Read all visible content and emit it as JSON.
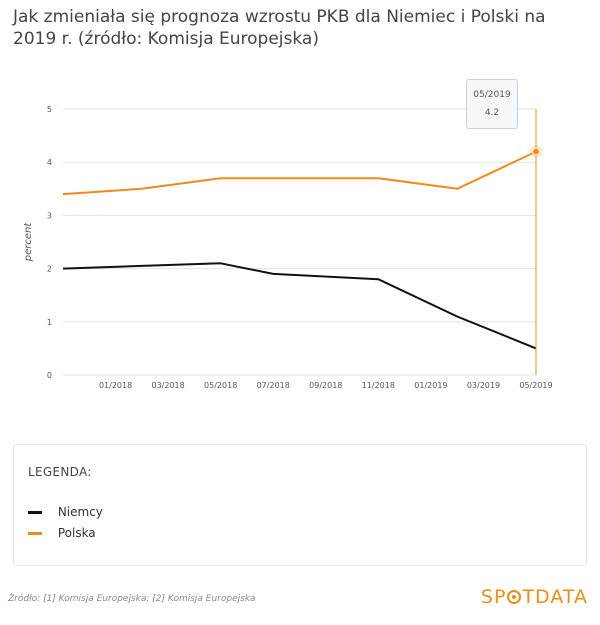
{
  "header": {
    "title": "Jak zmieniała się prognoza wzrostu PKB dla Niemiec i Polski na 2019 r. (źródło: Komisja Europejska)"
  },
  "chart_data": {
    "type": "line",
    "title": "Jak zmieniała się prognoza wzrostu PKB dla Niemiec i Polski na 2019 r. (źródło: Komisja Europejska)",
    "ylabel": "percent",
    "xlabel": "",
    "ylim": [
      0,
      5
    ],
    "yticks": [
      "0",
      "1",
      "2",
      "3",
      "4",
      "5"
    ],
    "xticks": [
      "01/2018",
      "03/2018",
      "05/2018",
      "07/2018",
      "09/2018",
      "11/2018",
      "01/2019",
      "03/2019",
      "05/2019"
    ],
    "grid": true,
    "series": [
      {
        "name": "Niemcy",
        "color": "#111111",
        "points": [
          {
            "x": "11/2017",
            "y": 2.0
          },
          {
            "x": "02/2018",
            "y": 2.05
          },
          {
            "x": "05/2018",
            "y": 2.1
          },
          {
            "x": "07/2018",
            "y": 1.9
          },
          {
            "x": "11/2018",
            "y": 1.8
          },
          {
            "x": "02/2019",
            "y": 1.1
          },
          {
            "x": "05/2019",
            "y": 0.5
          }
        ]
      },
      {
        "name": "Polska",
        "color": "#f28a18",
        "points": [
          {
            "x": "11/2017",
            "y": 3.4
          },
          {
            "x": "02/2018",
            "y": 3.5
          },
          {
            "x": "05/2018",
            "y": 3.7
          },
          {
            "x": "07/2018",
            "y": 3.7
          },
          {
            "x": "11/2018",
            "y": 3.7
          },
          {
            "x": "02/2019",
            "y": 3.5
          },
          {
            "x": "05/2019",
            "y": 4.2
          }
        ]
      }
    ],
    "tooltip": {
      "x": "05/2019",
      "value": "4.2"
    }
  },
  "legend": {
    "title": "LEGENDA:",
    "items": [
      {
        "label": "Niemcy",
        "color": "#111111"
      },
      {
        "label": "Polska",
        "color": "#f28a18"
      }
    ]
  },
  "footer": {
    "source": "Źródło: [1] Komisja Europejska; [2] Komisja Europejska",
    "brand_before": "SP",
    "brand_after": "TDATA"
  }
}
